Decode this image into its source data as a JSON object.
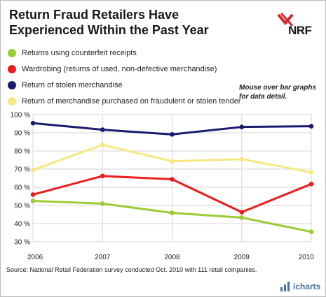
{
  "chart_data": {
    "type": "line",
    "title": "Return Fraud Retailers Have Experienced Within the Past Year",
    "x": [
      "2006",
      "2007",
      "2008",
      "2009",
      "2010"
    ],
    "y_ticks": [
      "30 %",
      "40 %",
      "50 %",
      "60 %",
      "70 %",
      "80 %",
      "90 %",
      "100 %"
    ],
    "ylim": [
      30,
      100
    ],
    "grid": true,
    "legend_position": "top-left",
    "series": [
      {
        "name": "Returns using counterfeit receipts",
        "color": "#99cc33",
        "values": [
          52.5,
          51.0,
          45.9,
          43.3,
          35.5
        ]
      },
      {
        "name": "Wardrobing (returns of used, non-defective merchandise)",
        "color": "#ee1c1c",
        "values": [
          56.0,
          66.2,
          64.4,
          46.3,
          61.8
        ]
      },
      {
        "name": "Return of stolen merchandise",
        "color": "#1a1a6e",
        "values": [
          95.3,
          91.7,
          89.1,
          93.2,
          93.6
        ]
      },
      {
        "name": "Return of merchandise purchased on fraudulent or stolen tender",
        "color": "#f5e880",
        "values": [
          69.5,
          83.4,
          74.3,
          75.5,
          68.2
        ]
      }
    ]
  },
  "logo_text": "NRF",
  "note": "Mouse over bar graphs for data detail.",
  "source": "Source: National Retail Federation survey conducted Oct. 2010 with 111 retail companies.",
  "brand": "icharts"
}
